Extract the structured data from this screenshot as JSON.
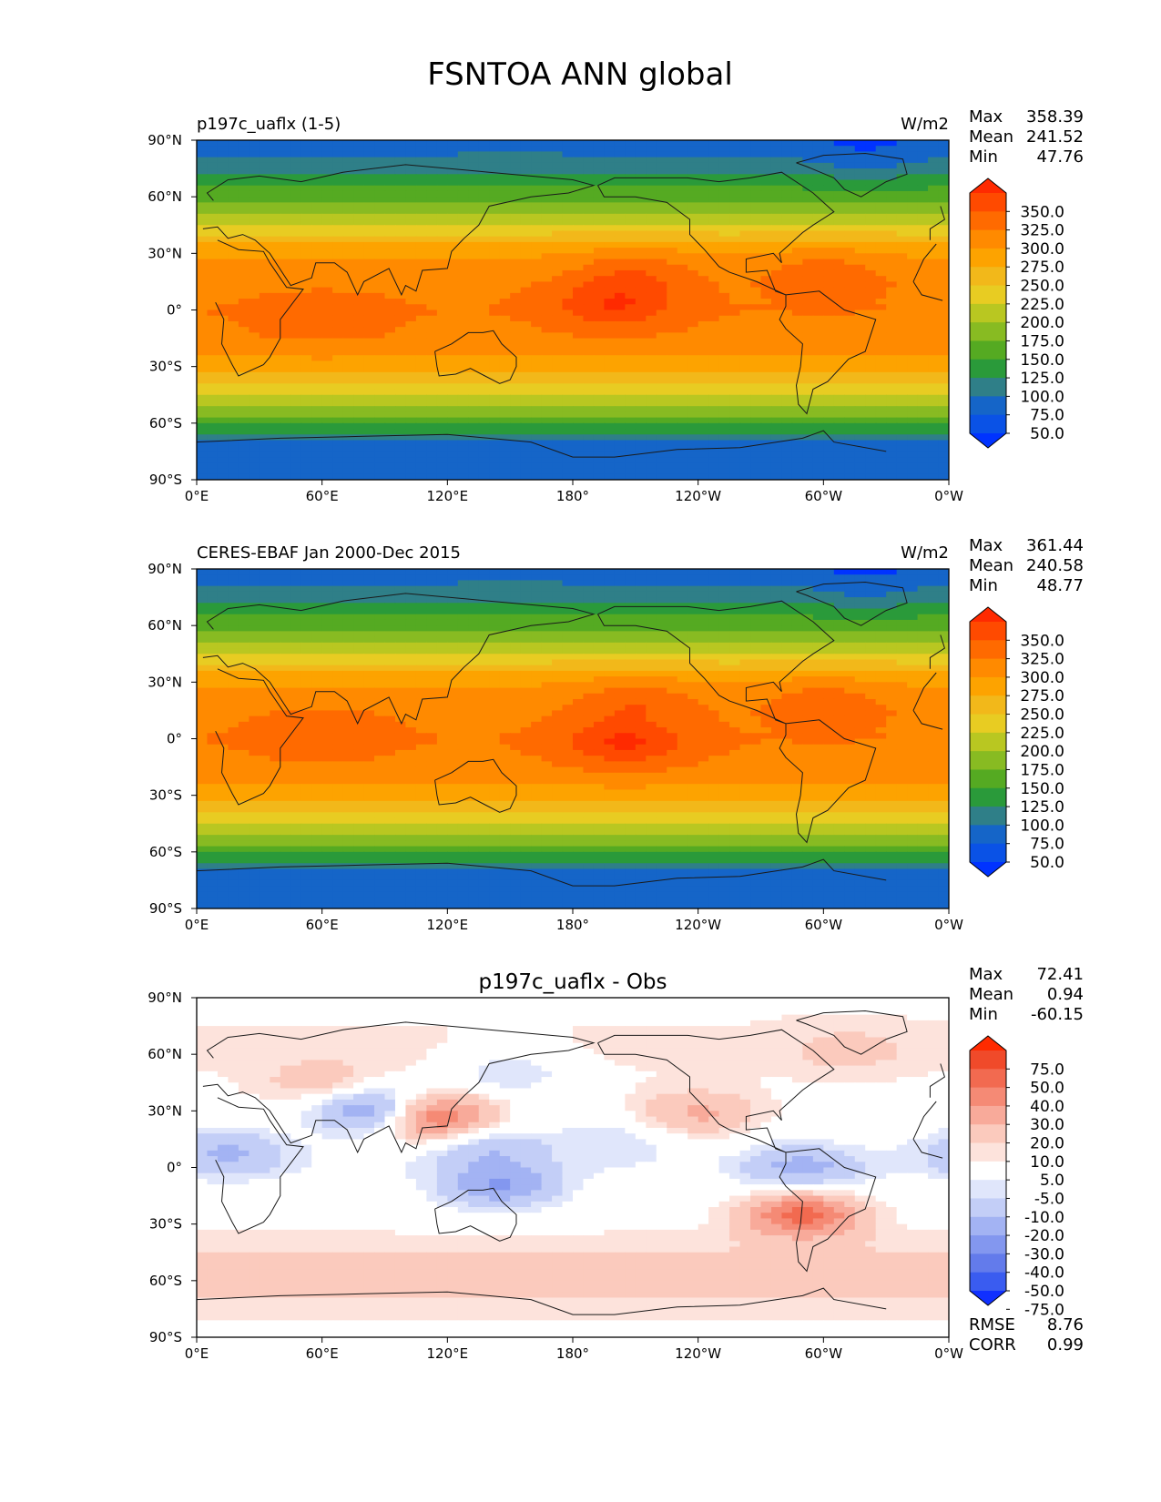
{
  "figure_title": "FSNTOA ANN global",
  "colors": {
    "ocean_deep": "#0a5bc4",
    "frame": "#000000",
    "coast": "#1a1a1a"
  },
  "chart_data": [
    {
      "type": "heatmap",
      "map": "global-equirectangular",
      "title_left": "p197c_uaflx (1-5)",
      "title_center": "",
      "units": "W/m2",
      "x_ticks": [
        "0°E",
        "60°E",
        "120°E",
        "180°",
        "120°W",
        "60°W",
        "0°W"
      ],
      "y_ticks": [
        "90°N",
        "60°N",
        "30°N",
        "0°",
        "30°S",
        "60°S",
        "90°S"
      ],
      "stats": [
        {
          "label": "Max",
          "value": "358.39"
        },
        {
          "label": "Mean",
          "value": "241.52"
        },
        {
          "label": "Min",
          "value": "47.76"
        }
      ],
      "colorbar": {
        "labels": [
          "350.0",
          "325.0",
          "300.0",
          "275.0",
          "250.0",
          "225.0",
          "200.0",
          "175.0",
          "150.0",
          "125.0",
          "100.0",
          "75.0",
          "50.0"
        ],
        "levels": [
          350,
          325,
          300,
          275,
          250,
          225,
          200,
          175,
          150,
          125,
          100,
          75,
          50
        ],
        "colors": [
          "#ff2a00",
          "#ff4a00",
          "#ff6a00",
          "#ff8a00",
          "#fda300",
          "#f2b81a",
          "#e8cc22",
          "#b9c721",
          "#88bb22",
          "#55aa22",
          "#2a9a3a",
          "#2f7f88",
          "#1565c8",
          "#0a52e6",
          "#0033ff"
        ],
        "extend": "both"
      },
      "field": {
        "zonal_profile": {
          "lat": [
            90,
            75,
            60,
            45,
            30,
            15,
            0,
            -15,
            -30,
            -45,
            -60,
            -70,
            -90
          ],
          "value": [
            55,
            95,
            140,
            205,
            270,
            295,
            300,
            295,
            265,
            200,
            130,
            70,
            50
          ]
        },
        "anomalies": [
          {
            "lat": 3,
            "lon": 200,
            "value": 352
          },
          {
            "lat": 22,
            "lon": 210,
            "value": 318
          },
          {
            "lat": 22,
            "lon": 300,
            "value": 312
          },
          {
            "lat": -5,
            "lon": 60,
            "value": 318
          },
          {
            "lat": 80,
            "lon": 320,
            "value": 60
          }
        ]
      }
    },
    {
      "type": "heatmap",
      "map": "global-equirectangular",
      "title_left": "CERES-EBAF Jan 2000-Dec 2015",
      "title_center": "",
      "units": "W/m2",
      "x_ticks": [
        "0°E",
        "60°E",
        "120°E",
        "180°",
        "120°W",
        "60°W",
        "0°W"
      ],
      "y_ticks": [
        "90°N",
        "60°N",
        "30°N",
        "0°",
        "30°S",
        "60°S",
        "90°S"
      ],
      "stats": [
        {
          "label": "Max",
          "value": "361.44"
        },
        {
          "label": "Mean",
          "value": "240.58"
        },
        {
          "label": "Min",
          "value": "48.77"
        }
      ],
      "colorbar": {
        "labels": [
          "350.0",
          "325.0",
          "300.0",
          "275.0",
          "250.0",
          "225.0",
          "200.0",
          "175.0",
          "150.0",
          "125.0",
          "100.0",
          "75.0",
          "50.0"
        ],
        "levels": [
          350,
          325,
          300,
          275,
          250,
          225,
          200,
          175,
          150,
          125,
          100,
          75,
          50
        ],
        "colors": [
          "#ff2a00",
          "#ff4a00",
          "#ff6a00",
          "#ff8a00",
          "#fda300",
          "#f2b81a",
          "#e8cc22",
          "#b9c721",
          "#88bb22",
          "#55aa22",
          "#2a9a3a",
          "#2f7f88",
          "#1565c8",
          "#0a52e6",
          "#0033ff"
        ],
        "extend": "both"
      },
      "field": {
        "zonal_profile": {
          "lat": [
            90,
            75,
            60,
            45,
            30,
            15,
            0,
            -15,
            -30,
            -45,
            -60,
            -70,
            -90
          ],
          "value": [
            55,
            95,
            140,
            205,
            270,
            295,
            300,
            295,
            265,
            200,
            130,
            70,
            50
          ]
        },
        "anomalies": [
          {
            "lat": -2,
            "lon": 205,
            "value": 355
          },
          {
            "lat": 22,
            "lon": 210,
            "value": 318
          },
          {
            "lat": 22,
            "lon": 300,
            "value": 312
          },
          {
            "lat": 2,
            "lon": 60,
            "value": 322
          },
          {
            "lat": 80,
            "lon": 320,
            "value": 62
          }
        ]
      }
    },
    {
      "type": "heatmap",
      "map": "global-equirectangular",
      "title_left": "",
      "title_center": "p197c_uaflx - Obs",
      "units": "",
      "x_ticks": [
        "0°E",
        "60°E",
        "120°E",
        "180°",
        "120°W",
        "60°W",
        "0°W"
      ],
      "y_ticks": [
        "90°N",
        "60°N",
        "30°N",
        "0°",
        "30°S",
        "60°S",
        "90°S"
      ],
      "stats": [
        {
          "label": "Max",
          "value": "72.41"
        },
        {
          "label": "Mean",
          "value": "0.94"
        },
        {
          "label": "Min",
          "value": "-60.15"
        }
      ],
      "stats_bottom": [
        {
          "label": "RMSE",
          "value": "8.76"
        },
        {
          "label": "CORR",
          "value": "0.99"
        }
      ],
      "colorbar": {
        "labels": [
          "75.0",
          "50.0",
          "40.0",
          "30.0",
          "20.0",
          "10.0",
          "5.0",
          "-5.0",
          "-10.0",
          "-20.0",
          "-30.0",
          "-40.0",
          "-50.0",
          "-75.0"
        ],
        "levels": [
          75,
          50,
          40,
          30,
          20,
          10,
          5,
          -5,
          -10,
          -20,
          -30,
          -40,
          -50,
          -75
        ],
        "colors": [
          "#ff2a00",
          "#f04a2a",
          "#f26a50",
          "#f58a75",
          "#f8aa9a",
          "#fbcabd",
          "#fde3dc",
          "#ffffff",
          "#e0e6fb",
          "#c3cef7",
          "#a3b3f3",
          "#8397ef",
          "#637beb",
          "#3a5cf0",
          "#1030ff"
        ],
        "extend": "both"
      },
      "field": {
        "zonal_profile": {
          "lat": [
            90,
            60,
            30,
            0,
            -30,
            -50,
            -60,
            -70,
            -90
          ],
          "value": [
            4,
            6,
            2,
            -3,
            3,
            12,
            14,
            10,
            0
          ]
        },
        "anomalies": [
          {
            "lat": 27,
            "lon": 110,
            "value": 55
          },
          {
            "lat": 30,
            "lon": 88,
            "value": -45
          },
          {
            "lat": -25,
            "lon": 290,
            "value": 45
          },
          {
            "lat": -10,
            "lon": 145,
            "value": -30
          },
          {
            "lat": 8,
            "lon": 15,
            "value": -22
          },
          {
            "lat": 10,
            "lon": 140,
            "value": -18
          },
          {
            "lat": 28,
            "lon": 240,
            "value": 22
          },
          {
            "lat": 0,
            "lon": 290,
            "value": -25
          },
          {
            "lat": 62,
            "lon": 312,
            "value": 14
          },
          {
            "lat": 15,
            "lon": 200,
            "value": -10
          },
          {
            "lat": 50,
            "lon": 150,
            "value": -10
          },
          {
            "lat": 45,
            "lon": 60,
            "value": 16
          }
        ]
      }
    }
  ]
}
